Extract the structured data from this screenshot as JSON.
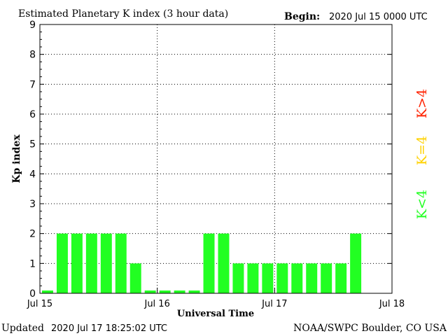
{
  "header": {
    "title": "Estimated Planetary K index (3 hour data)",
    "begin_label": "Begin:",
    "begin_value": "2020 Jul 15 0000 UTC"
  },
  "footer": {
    "updated_label": "Updated",
    "updated_value": "2020 Jul 17 18:25:02 UTC",
    "source": "NOAA/SWPC Boulder, CO USA"
  },
  "legend": {
    "high": "K>4",
    "equal": "K=4",
    "low": "K<4"
  },
  "colors": {
    "bar_low": "#22ff22",
    "bar_equal": "#ffd200",
    "bar_high": "#ff2200",
    "axis": "#000000",
    "grid": "#000000"
  },
  "chart_data": {
    "type": "bar",
    "title": "Estimated Planetary K index (3 hour data)",
    "xlabel": "Universal Time",
    "ylabel": "Kp index",
    "ylim": [
      0,
      9
    ],
    "yticks": [
      "0",
      "1",
      "2",
      "3",
      "4",
      "5",
      "6",
      "7",
      "8",
      "9"
    ],
    "xlim_days": [
      0,
      3
    ],
    "xticks": [
      "Jul 15",
      "Jul 16",
      "Jul 17",
      "Jul 18"
    ],
    "grid": "dotted",
    "categories": [
      "Jul 15 00",
      "Jul 15 03",
      "Jul 15 06",
      "Jul 15 09",
      "Jul 15 12",
      "Jul 15 15",
      "Jul 15 18",
      "Jul 15 21",
      "Jul 16 00",
      "Jul 16 03",
      "Jul 16 06",
      "Jul 16 09",
      "Jul 16 12",
      "Jul 16 15",
      "Jul 16 18",
      "Jul 16 21",
      "Jul 17 00",
      "Jul 17 03",
      "Jul 17 06",
      "Jul 17 09",
      "Jul 17 12",
      "Jul 17 15"
    ],
    "values": [
      0,
      2,
      2,
      2,
      2,
      2,
      1,
      0,
      0,
      0,
      0,
      2,
      2,
      1,
      1,
      1,
      1,
      1,
      1,
      1,
      1,
      2
    ]
  }
}
